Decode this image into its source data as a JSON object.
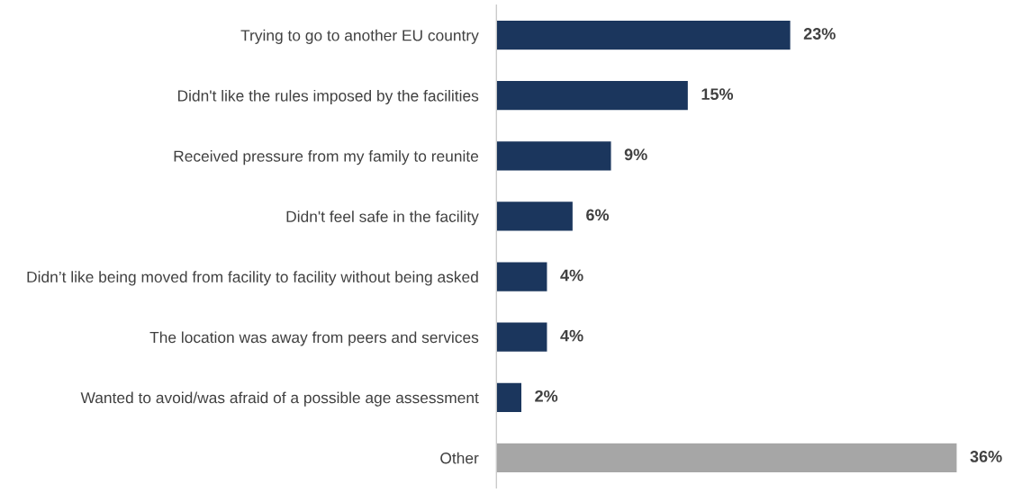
{
  "chart_data": {
    "type": "bar",
    "orientation": "horizontal",
    "categories": [
      "Trying to go to another EU country",
      "Didn't like the rules imposed by the facilities",
      "Received pressure from my family to reunite",
      "Didn't feel safe in the facility",
      "Didn’t like being moved from facility to facility without being asked",
      "The location was away from peers and services",
      "Wanted to avoid/was afraid of a possible age assessment",
      "Other"
    ],
    "values": [
      23,
      15,
      9,
      6,
      4,
      4,
      2,
      36
    ],
    "colors": [
      "#1b365d",
      "#1b365d",
      "#1b365d",
      "#1b365d",
      "#1b365d",
      "#1b365d",
      "#1b365d",
      "#a6a6a6"
    ],
    "value_labels": [
      "23%",
      "15%",
      "9%",
      "6%",
      "4%",
      "4%",
      "2%",
      "36%"
    ],
    "grid": false,
    "legend": false
  }
}
